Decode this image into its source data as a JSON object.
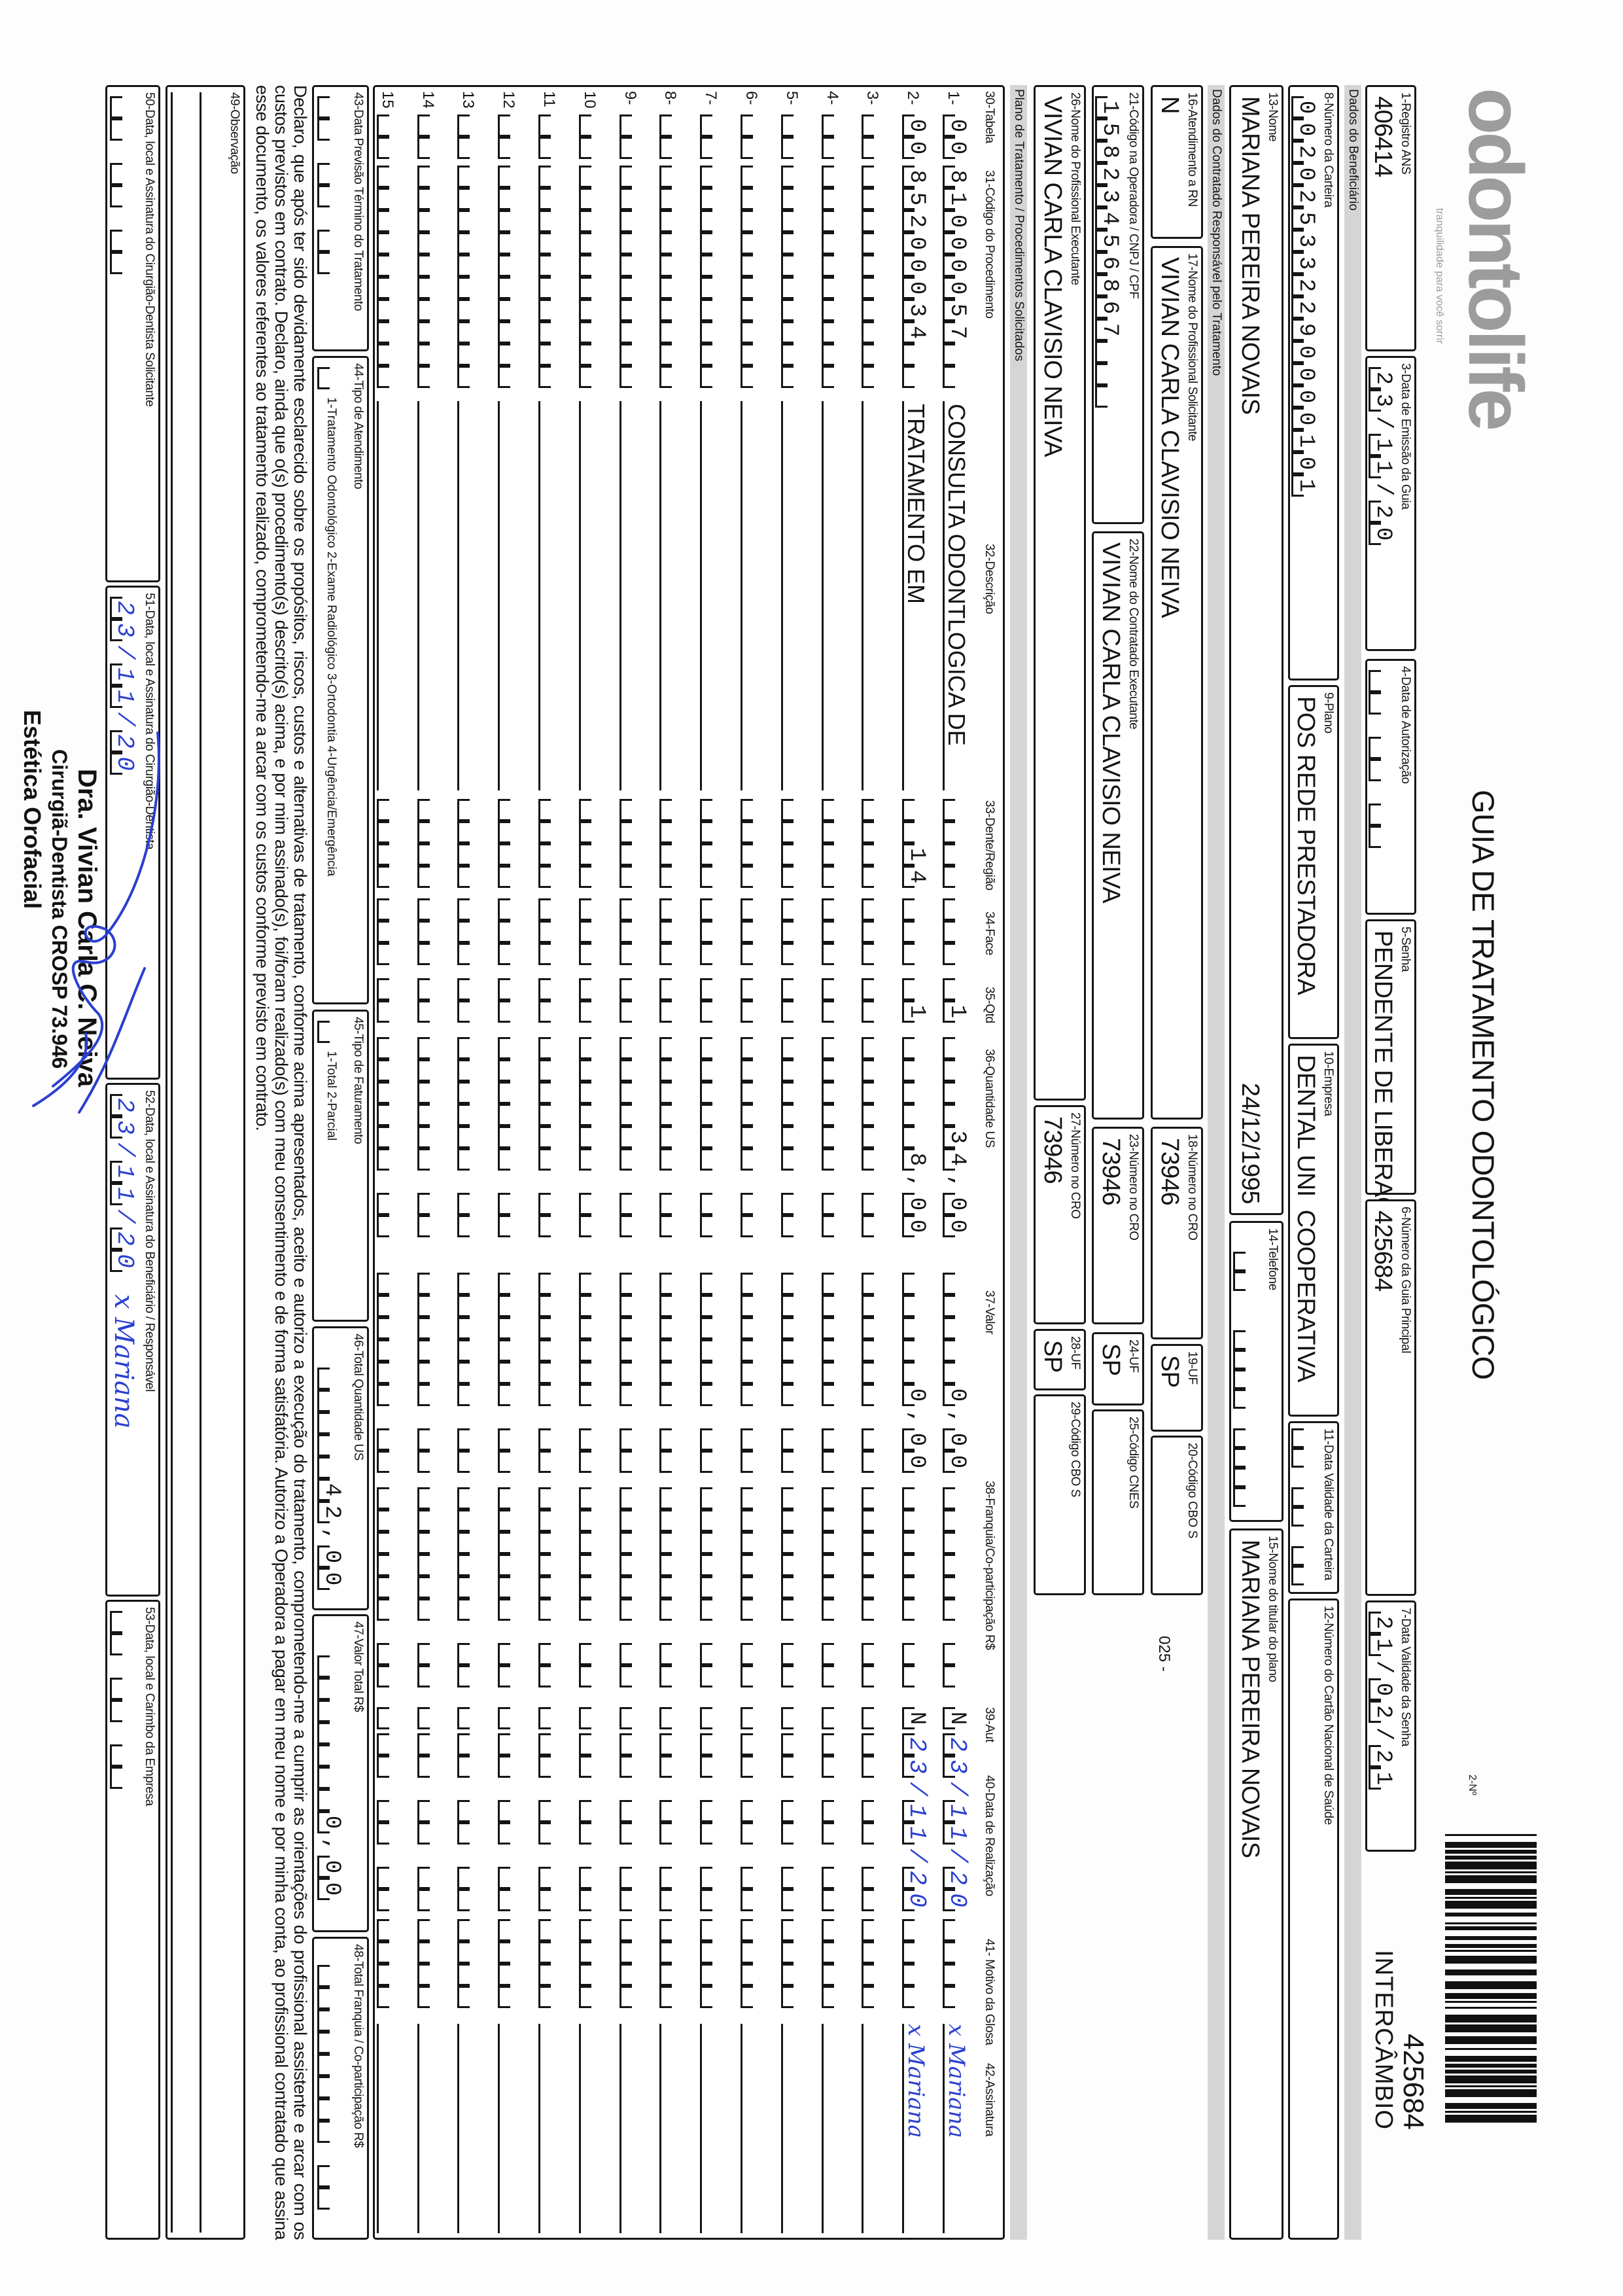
{
  "header": {
    "logo_text": "odontolife",
    "logo_tagline": "tranquilidade para você sorrir",
    "title": "GUIA DE TRATAMENTO ODONTOLÓGICO",
    "guide_no_label": "2-Nº",
    "barcode_number": "425684",
    "barcode_type": "INTERCÂMBIO"
  },
  "sections": {
    "beneficiario": "Dados do Beneficiário",
    "contratado": "Dados do Contratado Responsável pelo Tratamento",
    "plano": "Plano de Tratamento / Procedimentos Solicitados"
  },
  "fields": {
    "f1": {
      "label": "1-Registro ANS",
      "value": "406414"
    },
    "f3": {
      "label": "3-Data de Emissão da Guia",
      "value": "23/11/20"
    },
    "f4": {
      "label": "4-Data de Autorização",
      "value": ""
    },
    "f5": {
      "label": "5-Senha",
      "value": "PENDENTE DE LIBERAÇÃO"
    },
    "f6": {
      "label": "6-Número da Guia Principal",
      "value": "425684"
    },
    "f7": {
      "label": "7-Data Validade da Senha",
      "value": "21/02/21"
    },
    "f8": {
      "label": "8-Número da Carteira",
      "value": "002025332290000101"
    },
    "f9": {
      "label": "9-Plano",
      "value": "POS REDE PRESTADORA"
    },
    "f10": {
      "label": "10-Empresa",
      "value": "DENTAL UNI  COOPERATIVA"
    },
    "f11": {
      "label": "11-Data Validade da Carteira",
      "value": ""
    },
    "f12": {
      "label": "12-Número do Cartão Nacional de Saúde",
      "value": ""
    },
    "f13": {
      "label": "13-Nome",
      "value": "MARIANA PEREIRA NOVAIS",
      "birth_date": "24/12/1995"
    },
    "f14": {
      "label": "14-Telefone",
      "value": ""
    },
    "f15": {
      "label": "15-Nome do titular do plano",
      "value": "MARIANA PEREIRA NOVAIS"
    },
    "f16": {
      "label": "16-Atendimento a RN",
      "value": "N"
    },
    "f17": {
      "label": "17-Nome do Profissional Solicitante",
      "value": "VIVIAN CARLA CLAVISIO NEIVA"
    },
    "f18": {
      "label": "18-Número no CRO",
      "value": "73946"
    },
    "f19": {
      "label": "19-UF",
      "value": "SP"
    },
    "f20": {
      "label": "20-Código CBO S",
      "value": "",
      "note": "025 -"
    },
    "f21": {
      "label": "21-Código na Operadora / CNPJ / CPF",
      "value": "15823456867"
    },
    "f22": {
      "label": "22-Nome do Contratado Executante",
      "value": "VIVIAN CARLA CLAVISIO NEIVA"
    },
    "f23": {
      "label": "23-Número no CRO",
      "value": "73946"
    },
    "f24": {
      "label": "24-UF",
      "value": "SP"
    },
    "f25": {
      "label": "25-Código CNES",
      "value": ""
    },
    "f26": {
      "label": "26-Nome do Profissional Executante",
      "value": "VIVIAN CARLA CLAVISIO NEIVA"
    },
    "f27": {
      "label": "27-Número no CRO",
      "value": "73946"
    },
    "f28": {
      "label": "28-UF",
      "value": "SP"
    },
    "f29": {
      "label": "29-Código CBO S",
      "value": ""
    }
  },
  "table": {
    "columns": [
      "30-Tabela",
      "31-Código do Procedimento",
      "32-Descrição",
      "33-Dente/Região",
      "34-Face",
      "35-Qtd",
      "36-Quantidade US",
      "37-Valor",
      "38-Franquia/Co-participação R$",
      "39-Aut",
      "40-Data de Realização",
      "41- Motivo da Glosa",
      "42-Assinatura"
    ],
    "rows": [
      {
        "num": "1-",
        "tabela": "00",
        "codigo": "81000057",
        "descricao": "CONSULTA ODONTLOGICA DE",
        "dente": "",
        "face": "",
        "qtd": "1",
        "qtd_us": "34,00",
        "valor": "0,00",
        "franquia": "",
        "aut": "N",
        "data_realizacao": "23/11/20",
        "motivo_glosa": "",
        "assinatura": "x Mariana"
      },
      {
        "num": "2-",
        "tabela": "00",
        "codigo": "85200034",
        "descricao": "TRATAMENTO EM",
        "dente": "14",
        "face": "",
        "qtd": "1",
        "qtd_us": "8,00",
        "valor": "0,00",
        "franquia": "",
        "aut": "N",
        "data_realizacao": "23/11/20",
        "motivo_glosa": "",
        "assinatura": "x Mariana"
      },
      {
        "num": "3-"
      },
      {
        "num": "4-"
      },
      {
        "num": "5-"
      },
      {
        "num": "6-"
      },
      {
        "num": "7-"
      },
      {
        "num": "8-"
      },
      {
        "num": "9-"
      },
      {
        "num": "10"
      },
      {
        "num": "11"
      },
      {
        "num": "12"
      },
      {
        "num": "13"
      },
      {
        "num": "14"
      },
      {
        "num": "15"
      }
    ]
  },
  "totals": {
    "f43": {
      "label": "43-Data Previsão Término do Tratamento",
      "value": ""
    },
    "f44": {
      "label": "44-Tipo de Atendimento",
      "options": "1-Tratamento Odontológico  2-Exame Radiológico  3-Ortodontia  4-Urgência/Emergência",
      "value": ""
    },
    "f45": {
      "label": "45-Tipo de Faturamento",
      "options": "1-Total  2-Parcial",
      "value": ""
    },
    "f46": {
      "label": "46-Total Quantidade US",
      "value": "42,00"
    },
    "f47": {
      "label": "47-Valor Total R$",
      "value": "0,00"
    },
    "f48": {
      "label": "48-Total Franquia / Co-participação R$",
      "value": ""
    }
  },
  "declaration": "Declaro, que após ter sido devidamente esclarecido sobre os propósitos, riscos, custos e alternativas de tratamento, conforme acima apresentados, aceito e autorizo a execução do tratamento, comprometendo-me a cumprir as orientações do profissional assistente e arcar com os custos previstos em contrato. Declaro, ainda que o(s) procedimento(s) descrito(s) acima, e por mim assinado(s), foi/foram realizado(s) com meu consentimento e de forma satisfatória. Autorizo a Operadora a pagar em meu nome e por minha conta, ao profissional contratado que assina esse documento, os valores referentes ao tratamento realizado, comprometendo-me a arcar com os custos conforme previsto em contrato.",
  "observation": {
    "label": "49-Observação",
    "value": ""
  },
  "signatures": {
    "f50": {
      "label": "50-Data, local e Assinatura do Cirurgião-Dentista Solicitante",
      "date": ""
    },
    "f51": {
      "label": "51-Data, local e Assinatura do Cirurgião-Dentista",
      "date": "23/11/20"
    },
    "f52": {
      "label": "52-Data, local e Assinatura do Beneficiário / Responsável",
      "date": "23/11/20",
      "signature": "x Mariana"
    },
    "f53": {
      "label": "53-Data, local e Carimbo da Empresa",
      "date": ""
    }
  },
  "stamp": {
    "line1": "Dra. Vivian Carla C. Neiva",
    "line2": "Cirurgiã-Dentista CROSP 73.946",
    "line3": "Estética Orofacial"
  },
  "colors": {
    "ink": "#141414",
    "handwriting_blue": "#2a3fd0",
    "section_gray": "#d5d5d5",
    "logo_gray": "#9c9c9c"
  }
}
